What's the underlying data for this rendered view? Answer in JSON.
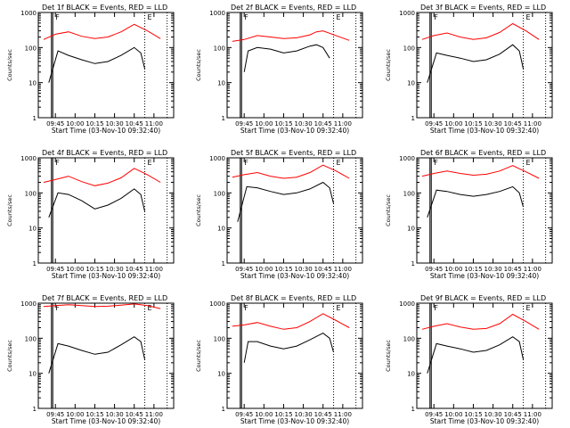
{
  "colors": {
    "events": "#000000",
    "lld": "#ff0000",
    "axis": "#000000",
    "background": "#ffffff"
  },
  "common": {
    "xlabel": "Start Time (03-Nov-10 09:32:40)",
    "ylabel": "Counts/sec",
    "x_ticks": [
      "09:45",
      "10:00",
      "10:15",
      "10:30",
      "10:45",
      "11:00"
    ],
    "y_ticks": [
      "1",
      "10",
      "100",
      "1000"
    ],
    "y_scale": "log",
    "ylim": [
      1,
      1000
    ],
    "marker_labels": [
      "F",
      "E"
    ]
  },
  "chart_data": [
    {
      "type": "line",
      "title": "Det 1f BLACK = Events, RED = LLD",
      "series": [
        {
          "name": "BLACK = Events",
          "x": [
            "09:40",
            "09:47",
            "09:55",
            "10:05",
            "10:15",
            "10:25",
            "10:35",
            "10:45",
            "10:50",
            "10:53"
          ],
          "values": [
            10,
            80,
            60,
            45,
            35,
            40,
            60,
            100,
            70,
            25
          ]
        },
        {
          "name": "RED = LLD",
          "x": [
            "09:36",
            "09:45",
            "09:55",
            "10:05",
            "10:15",
            "10:25",
            "10:35",
            "10:45",
            "10:55",
            "11:05"
          ],
          "values": [
            170,
            240,
            280,
            210,
            180,
            200,
            280,
            460,
            300,
            180
          ]
        }
      ]
    },
    {
      "type": "line",
      "title": "Det 2f BLACK = Events, RED = LLD",
      "series": [
        {
          "name": "BLACK = Events",
          "x": [
            "09:45",
            "09:48",
            "09:55",
            "10:05",
            "10:15",
            "10:25",
            "10:35",
            "10:40",
            "10:45",
            "10:50"
          ],
          "values": [
            20,
            80,
            100,
            90,
            70,
            80,
            110,
            120,
            100,
            50
          ]
        },
        {
          "name": "RED = LLD",
          "x": [
            "09:36",
            "09:45",
            "09:55",
            "10:05",
            "10:15",
            "10:25",
            "10:35",
            "10:40",
            "10:45",
            "11:05"
          ],
          "values": [
            150,
            170,
            220,
            200,
            180,
            190,
            230,
            280,
            300,
            160
          ]
        }
      ]
    },
    {
      "type": "line",
      "title": "Det 3f BLACK = Events, RED = LLD",
      "series": [
        {
          "name": "BLACK = Events",
          "x": [
            "09:40",
            "09:47",
            "09:55",
            "10:05",
            "10:15",
            "10:25",
            "10:35",
            "10:45",
            "10:50",
            "10:53"
          ],
          "values": [
            10,
            70,
            60,
            50,
            40,
            45,
            65,
            120,
            80,
            25
          ]
        },
        {
          "name": "RED = LLD",
          "x": [
            "09:36",
            "09:45",
            "09:55",
            "10:05",
            "10:15",
            "10:25",
            "10:35",
            "10:45",
            "10:55",
            "11:05"
          ],
          "values": [
            170,
            220,
            260,
            200,
            170,
            190,
            270,
            480,
            300,
            170
          ]
        }
      ]
    },
    {
      "type": "line",
      "title": "Det 4f BLACK = Events, RED = LLD",
      "series": [
        {
          "name": "BLACK = Events",
          "x": [
            "09:40",
            "09:47",
            "09:55",
            "10:05",
            "10:15",
            "10:25",
            "10:35",
            "10:45",
            "10:50",
            "10:53"
          ],
          "values": [
            20,
            100,
            90,
            60,
            35,
            45,
            70,
            130,
            90,
            30
          ]
        },
        {
          "name": "RED = LLD",
          "x": [
            "09:36",
            "09:45",
            "09:55",
            "10:05",
            "10:15",
            "10:25",
            "10:35",
            "10:45",
            "10:55",
            "11:05"
          ],
          "values": [
            200,
            240,
            300,
            210,
            160,
            190,
            270,
            500,
            330,
            200
          ]
        }
      ]
    },
    {
      "type": "line",
      "title": "Det 5f BLACK = Events, RED = LLD",
      "series": [
        {
          "name": "BLACK = Events",
          "x": [
            "09:40",
            "09:47",
            "09:55",
            "10:05",
            "10:15",
            "10:25",
            "10:35",
            "10:45",
            "10:50",
            "10:53"
          ],
          "values": [
            15,
            150,
            140,
            110,
            90,
            100,
            130,
            200,
            140,
            50
          ]
        },
        {
          "name": "RED = LLD",
          "x": [
            "09:36",
            "09:45",
            "09:55",
            "10:05",
            "10:15",
            "10:25",
            "10:35",
            "10:45",
            "10:55",
            "11:05"
          ],
          "values": [
            280,
            330,
            380,
            300,
            260,
            280,
            380,
            620,
            420,
            260
          ]
        }
      ]
    },
    {
      "type": "line",
      "title": "Det 6f BLACK = Events, RED = LLD",
      "series": [
        {
          "name": "BLACK = Events",
          "x": [
            "09:40",
            "09:47",
            "09:55",
            "10:05",
            "10:15",
            "10:25",
            "10:35",
            "10:45",
            "10:50",
            "10:53"
          ],
          "values": [
            20,
            120,
            110,
            90,
            80,
            90,
            110,
            150,
            100,
            40
          ]
        },
        {
          "name": "RED = LLD",
          "x": [
            "09:36",
            "09:45",
            "09:55",
            "10:05",
            "10:15",
            "10:25",
            "10:35",
            "10:45",
            "10:55",
            "11:05"
          ],
          "values": [
            300,
            360,
            420,
            360,
            320,
            340,
            420,
            600,
            400,
            260
          ]
        }
      ]
    },
    {
      "type": "line",
      "title": "Det 7f BLACK = Events, RED = LLD",
      "series": [
        {
          "name": "BLACK = Events",
          "x": [
            "09:40",
            "09:47",
            "09:55",
            "10:05",
            "10:15",
            "10:25",
            "10:35",
            "10:45",
            "10:50",
            "10:53"
          ],
          "values": [
            10,
            70,
            60,
            45,
            35,
            40,
            65,
            110,
            80,
            25
          ]
        },
        {
          "name": "RED = LLD",
          "x": [
            "09:36",
            "09:45",
            "09:55",
            "10:05",
            "10:15",
            "10:25",
            "10:35",
            "10:45",
            "10:55",
            "11:05"
          ],
          "values": [
            800,
            850,
            900,
            850,
            800,
            820,
            880,
            950,
            850,
            700
          ]
        }
      ]
    },
    {
      "type": "line",
      "title": "Det 8f BLACK = Events, RED = LLD",
      "series": [
        {
          "name": "BLACK = Events",
          "x": [
            "09:45",
            "09:48",
            "09:55",
            "10:05",
            "10:15",
            "10:25",
            "10:35",
            "10:45",
            "10:50",
            "10:53"
          ],
          "values": [
            20,
            80,
            80,
            60,
            50,
            60,
            90,
            140,
            100,
            40
          ]
        },
        {
          "name": "RED = LLD",
          "x": [
            "09:36",
            "09:45",
            "09:55",
            "10:05",
            "10:15",
            "10:25",
            "10:35",
            "10:45",
            "10:55",
            "11:05"
          ],
          "values": [
            220,
            240,
            280,
            220,
            180,
            200,
            300,
            500,
            320,
            200
          ]
        }
      ]
    },
    {
      "type": "line",
      "title": "Det 9f BLACK = Events, RED = LLD",
      "series": [
        {
          "name": "BLACK = Events",
          "x": [
            "09:40",
            "09:47",
            "09:55",
            "10:05",
            "10:15",
            "10:25",
            "10:35",
            "10:45",
            "10:50",
            "10:53"
          ],
          "values": [
            10,
            70,
            60,
            50,
            40,
            45,
            65,
            110,
            80,
            25
          ]
        },
        {
          "name": "RED = LLD",
          "x": [
            "09:36",
            "09:45",
            "09:55",
            "10:05",
            "10:15",
            "10:25",
            "10:35",
            "10:45",
            "10:55",
            "11:05"
          ],
          "values": [
            180,
            220,
            260,
            210,
            180,
            190,
            260,
            480,
            300,
            180
          ]
        }
      ]
    }
  ]
}
